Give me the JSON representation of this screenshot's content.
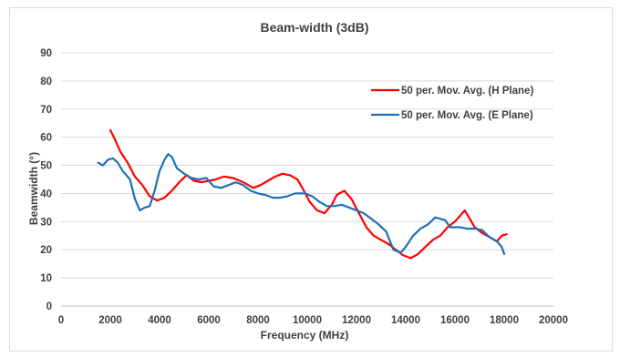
{
  "chart_data": {
    "type": "line",
    "title": "Beam-width (3dB)",
    "xlabel": "Frequency (MHz)",
    "ylabel": "Beamwidth (°)",
    "xlim": [
      0,
      20000
    ],
    "ylim": [
      0,
      90
    ],
    "x_ticks": [
      "0",
      "2000",
      "4000",
      "6000",
      "8000",
      "10000",
      "12000",
      "14000",
      "16000",
      "18000",
      "20000"
    ],
    "y_ticks": [
      "0",
      "10",
      "20",
      "30",
      "40",
      "50",
      "60",
      "70",
      "80",
      "90"
    ],
    "grid": true,
    "legend_position": "top-right",
    "series": [
      {
        "name": "50 per. Mov. Avg. (H Plane)",
        "color": "#ff0000",
        "points": [
          [
            2000,
            62.5
          ],
          [
            2200,
            59
          ],
          [
            2400,
            55
          ],
          [
            2700,
            51
          ],
          [
            3000,
            46
          ],
          [
            3300,
            43
          ],
          [
            3600,
            39
          ],
          [
            3900,
            37.5
          ],
          [
            4200,
            38.5
          ],
          [
            4500,
            41
          ],
          [
            4800,
            44
          ],
          [
            5100,
            46.5
          ],
          [
            5400,
            44.5
          ],
          [
            5700,
            44
          ],
          [
            6000,
            44.5
          ],
          [
            6300,
            45
          ],
          [
            6600,
            46
          ],
          [
            7000,
            45.5
          ],
          [
            7400,
            44
          ],
          [
            7800,
            42
          ],
          [
            8100,
            43
          ],
          [
            8400,
            44.5
          ],
          [
            8700,
            46
          ],
          [
            9000,
            47
          ],
          [
            9300,
            46.5
          ],
          [
            9600,
            45
          ],
          [
            9800,
            42
          ],
          [
            10100,
            37
          ],
          [
            10400,
            34
          ],
          [
            10700,
            33
          ],
          [
            11000,
            36
          ],
          [
            11200,
            39.5
          ],
          [
            11500,
            41
          ],
          [
            11800,
            38
          ],
          [
            12100,
            33
          ],
          [
            12400,
            28
          ],
          [
            12700,
            25
          ],
          [
            13000,
            23.5
          ],
          [
            13300,
            22
          ],
          [
            13600,
            20
          ],
          [
            13900,
            18
          ],
          [
            14200,
            17
          ],
          [
            14500,
            18.5
          ],
          [
            14800,
            21
          ],
          [
            15100,
            23.5
          ],
          [
            15400,
            25
          ],
          [
            15700,
            28
          ],
          [
            16000,
            30
          ],
          [
            16200,
            32
          ],
          [
            16400,
            34
          ],
          [
            16600,
            31
          ],
          [
            16800,
            28
          ],
          [
            17100,
            26
          ],
          [
            17400,
            24.5
          ],
          [
            17700,
            23
          ],
          [
            17900,
            25
          ],
          [
            18100,
            25.5
          ]
        ]
      },
      {
        "name": "50 per. Mov. Avg. (E Plane)",
        "color": "#1f6fb5",
        "points": [
          [
            1500,
            51
          ],
          [
            1700,
            50
          ],
          [
            1900,
            52
          ],
          [
            2100,
            52.5
          ],
          [
            2300,
            51
          ],
          [
            2500,
            48
          ],
          [
            2800,
            45
          ],
          [
            3000,
            38
          ],
          [
            3200,
            34
          ],
          [
            3400,
            35
          ],
          [
            3600,
            35.5
          ],
          [
            3800,
            41
          ],
          [
            4000,
            48
          ],
          [
            4200,
            52
          ],
          [
            4350,
            54
          ],
          [
            4500,
            53
          ],
          [
            4700,
            49
          ],
          [
            5000,
            47
          ],
          [
            5300,
            45.5
          ],
          [
            5600,
            45
          ],
          [
            5900,
            45.5
          ],
          [
            6200,
            42.5
          ],
          [
            6500,
            42
          ],
          [
            6800,
            43
          ],
          [
            7100,
            44
          ],
          [
            7400,
            43
          ],
          [
            7700,
            41
          ],
          [
            8000,
            40
          ],
          [
            8300,
            39.5
          ],
          [
            8600,
            38.5
          ],
          [
            8900,
            38.5
          ],
          [
            9200,
            39
          ],
          [
            9500,
            40
          ],
          [
            9900,
            40
          ],
          [
            10200,
            39
          ],
          [
            10500,
            37
          ],
          [
            10800,
            35.5
          ],
          [
            11100,
            35.5
          ],
          [
            11400,
            36
          ],
          [
            11700,
            35
          ],
          [
            12000,
            34
          ],
          [
            12300,
            33
          ],
          [
            12600,
            31
          ],
          [
            12900,
            29
          ],
          [
            13200,
            26.5
          ],
          [
            13500,
            20
          ],
          [
            13800,
            19
          ],
          [
            14000,
            21
          ],
          [
            14300,
            25
          ],
          [
            14600,
            27.5
          ],
          [
            14900,
            29
          ],
          [
            15200,
            31.5
          ],
          [
            15400,
            31
          ],
          [
            15600,
            30.5
          ],
          [
            15800,
            28
          ],
          [
            16000,
            28
          ],
          [
            16200,
            28
          ],
          [
            16500,
            27.5
          ],
          [
            16800,
            27.5
          ],
          [
            17100,
            27
          ],
          [
            17400,
            24.5
          ],
          [
            17700,
            23
          ],
          [
            17900,
            21
          ],
          [
            18000,
            18.5
          ]
        ]
      }
    ]
  }
}
